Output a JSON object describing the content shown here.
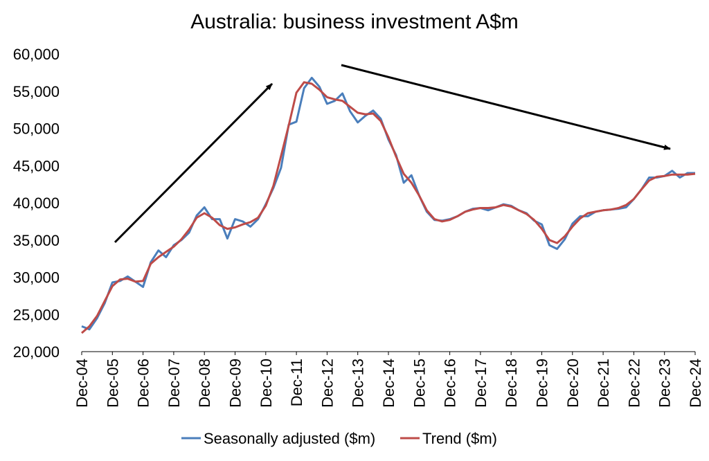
{
  "chart_data": {
    "type": "line",
    "title": "Australia: business investment A$m",
    "xlabel": "",
    "ylabel": "",
    "ylim": [
      20000,
      60000
    ],
    "yticks": [
      "20,000",
      "25,000",
      "30,000",
      "35,000",
      "40,000",
      "45,000",
      "50,000",
      "55,000",
      "60,000"
    ],
    "xticks": [
      "Dec-04",
      "Dec-05",
      "Dec-06",
      "Dec-07",
      "Dec-08",
      "Dec-09",
      "Dec-10",
      "Dec-11",
      "Dec-12",
      "Dec-13",
      "Dec-14",
      "Dec-15",
      "Dec-16",
      "Dec-17",
      "Dec-18",
      "Dec-19",
      "Dec-20",
      "Dec-21",
      "Dec-22",
      "Dec-23",
      "Dec-24"
    ],
    "x": [
      "Dec-04",
      "Mar-05",
      "Jun-05",
      "Sep-05",
      "Dec-05",
      "Mar-06",
      "Jun-06",
      "Sep-06",
      "Dec-06",
      "Mar-07",
      "Jun-07",
      "Sep-07",
      "Dec-07",
      "Mar-08",
      "Jun-08",
      "Sep-08",
      "Dec-08",
      "Mar-09",
      "Jun-09",
      "Sep-09",
      "Dec-09",
      "Mar-10",
      "Jun-10",
      "Sep-10",
      "Dec-10",
      "Mar-11",
      "Jun-11",
      "Sep-11",
      "Dec-11",
      "Mar-12",
      "Jun-12",
      "Sep-12",
      "Dec-12",
      "Mar-13",
      "Jun-13",
      "Sep-13",
      "Dec-13",
      "Mar-14",
      "Jun-14",
      "Sep-14",
      "Dec-14",
      "Mar-15",
      "Jun-15",
      "Sep-15",
      "Dec-15",
      "Mar-16",
      "Jun-16",
      "Sep-16",
      "Dec-16",
      "Mar-17",
      "Jun-17",
      "Sep-17",
      "Dec-17",
      "Mar-18",
      "Jun-18",
      "Sep-18",
      "Dec-18",
      "Mar-19",
      "Jun-19",
      "Sep-19",
      "Dec-19",
      "Mar-20",
      "Jun-20",
      "Sep-20",
      "Dec-20",
      "Mar-21",
      "Jun-21",
      "Sep-21",
      "Dec-21",
      "Mar-22",
      "Jun-22",
      "Sep-22",
      "Dec-22",
      "Mar-23",
      "Jun-23",
      "Sep-23",
      "Dec-23",
      "Mar-24",
      "Jun-24",
      "Sep-24",
      "Dec-24"
    ],
    "series": [
      {
        "name": "Seasonally adjusted ($m)",
        "color": "#4a7ebb",
        "values": [
          23400,
          23000,
          24500,
          26500,
          29300,
          29500,
          30100,
          29400,
          28700,
          32000,
          33600,
          32700,
          34300,
          35000,
          36000,
          38300,
          39400,
          37800,
          37800,
          35200,
          37800,
          37500,
          36800,
          37800,
          39800,
          42000,
          44700,
          50500,
          50900,
          55400,
          56800,
          55600,
          53300,
          53700,
          54700,
          52300,
          50800,
          51700,
          52400,
          51300,
          48500,
          46400,
          42700,
          43700,
          41000,
          38800,
          37700,
          37600,
          37800,
          38200,
          38800,
          39200,
          39300,
          39000,
          39400,
          39800,
          39600,
          39000,
          38600,
          37600,
          37100,
          34300,
          33800,
          35100,
          37200,
          38200,
          38200,
          38800,
          39000,
          39100,
          39200,
          39400,
          40500,
          41800,
          43400,
          43400,
          43600,
          44300,
          43400,
          44000,
          44000
        ]
      },
      {
        "name": "Trend ($m)",
        "color": "#be4b48",
        "values": [
          22500,
          23400,
          24800,
          26800,
          28800,
          29700,
          29800,
          29400,
          29500,
          31800,
          32700,
          33400,
          34100,
          35100,
          36400,
          38000,
          38600,
          38000,
          37000,
          36500,
          36700,
          37100,
          37400,
          38000,
          39600,
          42300,
          46300,
          50400,
          54800,
          56200,
          56000,
          55200,
          54200,
          53900,
          53700,
          52900,
          52100,
          51900,
          52000,
          51000,
          48800,
          46200,
          43900,
          42700,
          41000,
          39000,
          37800,
          37500,
          37700,
          38200,
          38800,
          39100,
          39300,
          39300,
          39400,
          39700,
          39500,
          39000,
          38500,
          37700,
          36500,
          35000,
          34600,
          35500,
          36800,
          37900,
          38600,
          38800,
          39000,
          39100,
          39300,
          39700,
          40500,
          41800,
          43000,
          43500,
          43600,
          43800,
          43800,
          43800,
          43900
        ]
      }
    ],
    "annotations": [
      "upward trend arrow",
      "downward trend arrow"
    ],
    "grid": false,
    "legend_position": "bottom"
  }
}
